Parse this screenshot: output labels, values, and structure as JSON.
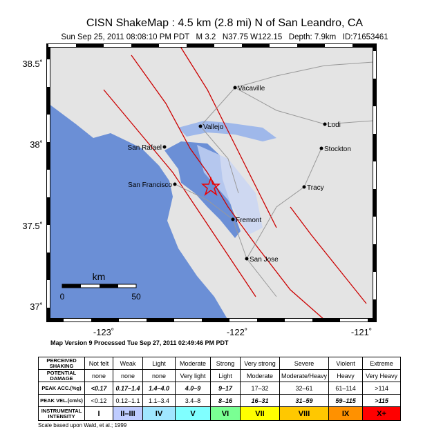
{
  "header": {
    "title": "CISN ShakeMap : 4.5 km (2.8 mi) N of San Leandro, CA",
    "subtitle": "Sun Sep 25, 2011 08:08:10 PM PDT   M 3.2   N37.75 W122.15   Depth: 7.9km   ID:71653461"
  },
  "map": {
    "lat_labels": [
      "38.5˚",
      "38˚",
      "37.5˚",
      "37˚"
    ],
    "lon_labels": [
      "-123˚",
      "-122˚",
      "-121˚"
    ],
    "cities": [
      "Vacaville",
      "Vallejo",
      "Lodi",
      "San Rafael",
      "Stockton",
      "San Francisco",
      "Tracy",
      "Fremont",
      "San Jose"
    ],
    "scale_bar": {
      "unit": "km",
      "start": "0",
      "end": "50"
    }
  },
  "version_note": "Map Version 9 Processed Tue Sep 27, 2011 02:49:46 PM PDT",
  "table": {
    "rows": [
      {
        "label": [
          "PERCEIVED",
          "SHAKING"
        ],
        "cells": [
          "Not felt",
          "Weak",
          "Light",
          "Moderate",
          "Strong",
          "Very strong",
          "Severe",
          "Violent",
          "Extreme"
        ]
      },
      {
        "label": [
          "POTENTIAL",
          "DAMAGE"
        ],
        "cells": [
          "none",
          "none",
          "none",
          "Very light",
          "Light",
          "Moderate",
          "Moderate/Heavy",
          "Heavy",
          "Very Heavy"
        ]
      },
      {
        "label": [
          "PEAK ACC.(%g)"
        ],
        "cells": [
          "<0.17",
          "0.17–1.4",
          "1.4–4.0",
          "4.0–9",
          "9–17",
          "17–32",
          "32–61",
          "61–114",
          ">114"
        ]
      },
      {
        "label": [
          "PEAK VEL.(cm/s)"
        ],
        "cells": [
          "<0.12",
          "0.12–1.1",
          "1.1–3.4",
          "3.4–8",
          "8–16",
          "16–31",
          "31–59",
          "59–115",
          ">115"
        ]
      },
      {
        "label": [
          "INSTRUMENTAL",
          "INTENSITY"
        ],
        "cells": [
          "I",
          "II–III",
          "IV",
          "V",
          "VI",
          "VII",
          "VIII",
          "IX",
          "X+"
        ]
      }
    ],
    "intensity_colors": [
      "#ffffff",
      "#bfccff",
      "#a0e6ff",
      "#80ffff",
      "#7aff93",
      "#ffff00",
      "#ffc800",
      "#ff9100",
      "#ff0000"
    ]
  },
  "footnote": "Scale based upon Wald, et al.; 1999"
}
